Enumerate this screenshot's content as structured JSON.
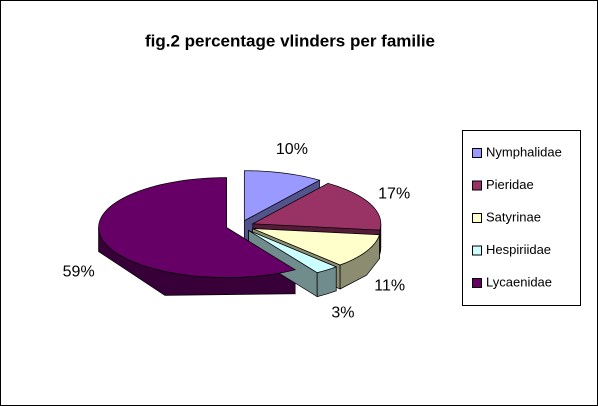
{
  "chart_data": {
    "type": "pie",
    "title": "fig.2  percentage vlinders per familie",
    "categories": [
      "Nymphalidae",
      "Pieridae",
      "Satyrinae",
      "Hespiriidae",
      "Lycaenidae"
    ],
    "values": [
      10,
      17,
      11,
      3,
      59
    ],
    "value_labels": [
      "10%",
      "17%",
      "11%",
      "3%",
      "59%"
    ],
    "colors": [
      "#9999ff",
      "#993366",
      "#ffffcc",
      "#ccffff",
      "#660066"
    ],
    "legend": "right"
  }
}
